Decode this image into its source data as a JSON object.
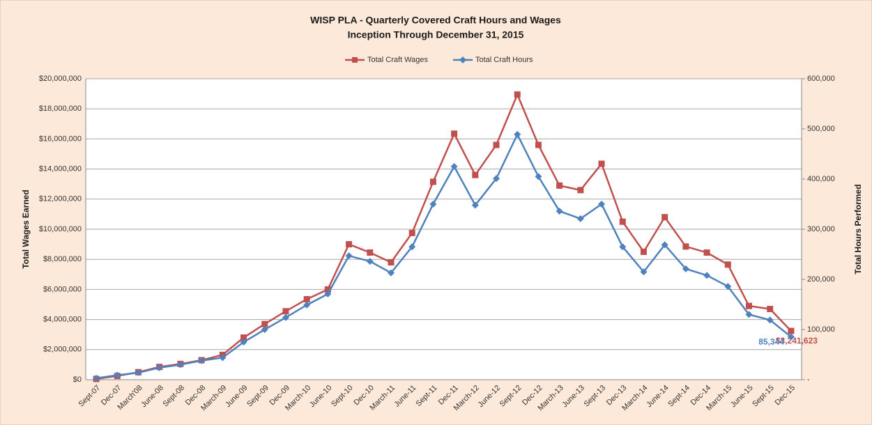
{
  "chart_data": {
    "type": "line",
    "title": "WISP PLA - Quarterly Covered Craft Hours and Wages",
    "subtitle": "Inception Through December 31, 2015",
    "y_label": "Total Wages Earned",
    "y2_label": "Total Hours Performed",
    "categories": [
      "Sept-07",
      "Dec-07",
      "March'08",
      "June-08",
      "Sept-08",
      "Dec-08",
      "March-09",
      "June-09",
      "Sept-09",
      "Dec-09",
      "March-10",
      "June-10",
      "Sept-10",
      "Dec-10",
      "March-11",
      "June-11",
      "Sept-11",
      "Dec-11",
      "March-12",
      "June-12",
      "Sept-12",
      "Dec-12",
      "March-13",
      "June-13",
      "Sept-13",
      "Dec-13",
      "March-14",
      "June-14",
      "Sept-14",
      "Dec-14",
      "March-15",
      "June-15",
      "Sept-15",
      "Dec-15"
    ],
    "series": [
      {
        "name": "Total Craft Wages",
        "color": "#c0504d",
        "marker": "square",
        "values": [
          50000,
          250000,
          500000,
          850000,
          1050000,
          1300000,
          1650000,
          2800000,
          3700000,
          4550000,
          5350000,
          6000000,
          9000000,
          8450000,
          7800000,
          9750000,
          13150000,
          16350000,
          13600000,
          15600000,
          18950000,
          15600000,
          12900000,
          12600000,
          14350000,
          10500000,
          8500000,
          10800000,
          8850000,
          8450000,
          7650000,
          4900000,
          4700000,
          3241623
        ],
        "value_labels": [
          null,
          null,
          null,
          null,
          null,
          null,
          null,
          null,
          null,
          null,
          null,
          null,
          null,
          null,
          null,
          null,
          null,
          null,
          null,
          null,
          null,
          null,
          null,
          null,
          null,
          null,
          null,
          null,
          null,
          null,
          null,
          null,
          null,
          "$3,241,623"
        ]
      },
      {
        "name": "Total Craft Hours",
        "color": "#4f81bd",
        "marker": "diamond",
        "axis": "y2",
        "values": [
          3000,
          9000,
          14000,
          24000,
          30000,
          38000,
          44000,
          75000,
          100000,
          124000,
          149000,
          171000,
          247000,
          236000,
          213000,
          265000,
          350000,
          425000,
          348000,
          401000,
          489000,
          405000,
          336000,
          321000,
          350000,
          265000,
          215000,
          269000,
          221000,
          208000,
          186000,
          130000,
          119000,
          85344
        ],
        "value_labels": [
          null,
          null,
          null,
          null,
          null,
          null,
          null,
          null,
          null,
          null,
          null,
          null,
          null,
          null,
          null,
          null,
          null,
          null,
          null,
          null,
          null,
          null,
          null,
          null,
          null,
          null,
          null,
          null,
          null,
          null,
          null,
          null,
          null,
          "85,344"
        ]
      }
    ],
    "ylim": [
      0,
      20000000
    ],
    "yticks": [
      {
        "value": 0,
        "label": "$0"
      },
      {
        "value": 2000000,
        "label": "$2,000,000"
      },
      {
        "value": 4000000,
        "label": "$4,000,000"
      },
      {
        "value": 6000000,
        "label": "$6,000,000"
      },
      {
        "value": 8000000,
        "label": "$8,000,000"
      },
      {
        "value": 10000000,
        "label": "$10,000,000"
      },
      {
        "value": 12000000,
        "label": "$12,000,000"
      },
      {
        "value": 14000000,
        "label": "$14,000,000"
      },
      {
        "value": 16000000,
        "label": "$16,000,000"
      },
      {
        "value": 18000000,
        "label": "$18,000,000"
      },
      {
        "value": 20000000,
        "label": "$20,000,000"
      }
    ],
    "y2lim": [
      0,
      600000
    ],
    "y2ticks": [
      {
        "value": 0,
        "label": "-"
      },
      {
        "value": 100000,
        "label": "100,000"
      },
      {
        "value": 200000,
        "label": "200,000"
      },
      {
        "value": 300000,
        "label": "300,000"
      },
      {
        "value": 400000,
        "label": "400,000"
      },
      {
        "value": 500000,
        "label": "500,000"
      },
      {
        "value": 600000,
        "label": "600,000"
      }
    ],
    "grid": true,
    "legend": "top"
  }
}
